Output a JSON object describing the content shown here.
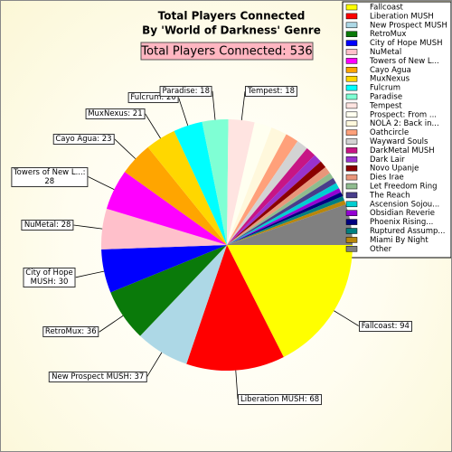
{
  "chart_data": {
    "type": "pie",
    "title": "Total Players Connected",
    "subtitle": "By 'World of Darkness' Genre",
    "total_label": "Total Players Connected: 536",
    "categories": [
      "Fallcoast",
      "Liberation MUSH",
      "New Prospect MUSH",
      "RetroMux",
      "City of Hope MUSH",
      "NuMetal",
      "Towers of New L...",
      "Cayo Agua",
      "MuxNexus",
      "Fulcrum",
      "Paradise",
      "Tempest",
      "Prospect: From ...",
      "NOLA 2: Back in...",
      "Oathcircle",
      "Wayward Souls",
      "DarkMetal MUSH",
      "Dark Lair",
      "Novo Upanje",
      "Dies Irae",
      "Let Freedom Ring",
      "The Reach",
      "Ascension Sojou...",
      "Obsidian Reverie",
      "Phoenix Rising...",
      "Ruptured Assump...",
      "Miami By Night",
      "Other"
    ],
    "values": [
      94,
      68,
      37,
      36,
      30,
      28,
      28,
      23,
      21,
      20,
      18,
      18,
      12,
      11,
      9,
      8,
      7,
      6,
      5,
      5,
      4,
      4,
      4,
      3,
      3,
      3,
      3,
      28
    ],
    "value_labels": [
      "Fallcoast: 94",
      "Liberation MUSH: 68",
      "New Prospect MUSH: 37",
      "RetroMux: 36",
      "City of Hope\nMUSH: 30",
      "NuMetal: 28",
      "Towers of New L...:\n28",
      "Cayo Agua: 23",
      "MuxNexus: 21",
      "Fulcrum: 20",
      "Paradise: 18",
      "Tempest: 18",
      null,
      null,
      null,
      null,
      null,
      null,
      null,
      null,
      null,
      null,
      null,
      null,
      null,
      null,
      null,
      null
    ],
    "colors": [
      "#ffff00",
      "#ff0000",
      "#add8e6",
      "#0a7a0a",
      "#0000ff",
      "#ffc0cb",
      "#ff00ff",
      "#ffa500",
      "#ffd700",
      "#00ffff",
      "#7fffd4",
      "#ffe4e1",
      "#fffff0",
      "#fff8dc",
      "#ffa07a",
      "#d3d3d3",
      "#c71585",
      "#9932cc",
      "#8b0000",
      "#e9967a",
      "#8fbc8f",
      "#483d8b",
      "#00ced1",
      "#9400d3",
      "#000080",
      "#008080",
      "#b8860b",
      "#808080"
    ]
  }
}
